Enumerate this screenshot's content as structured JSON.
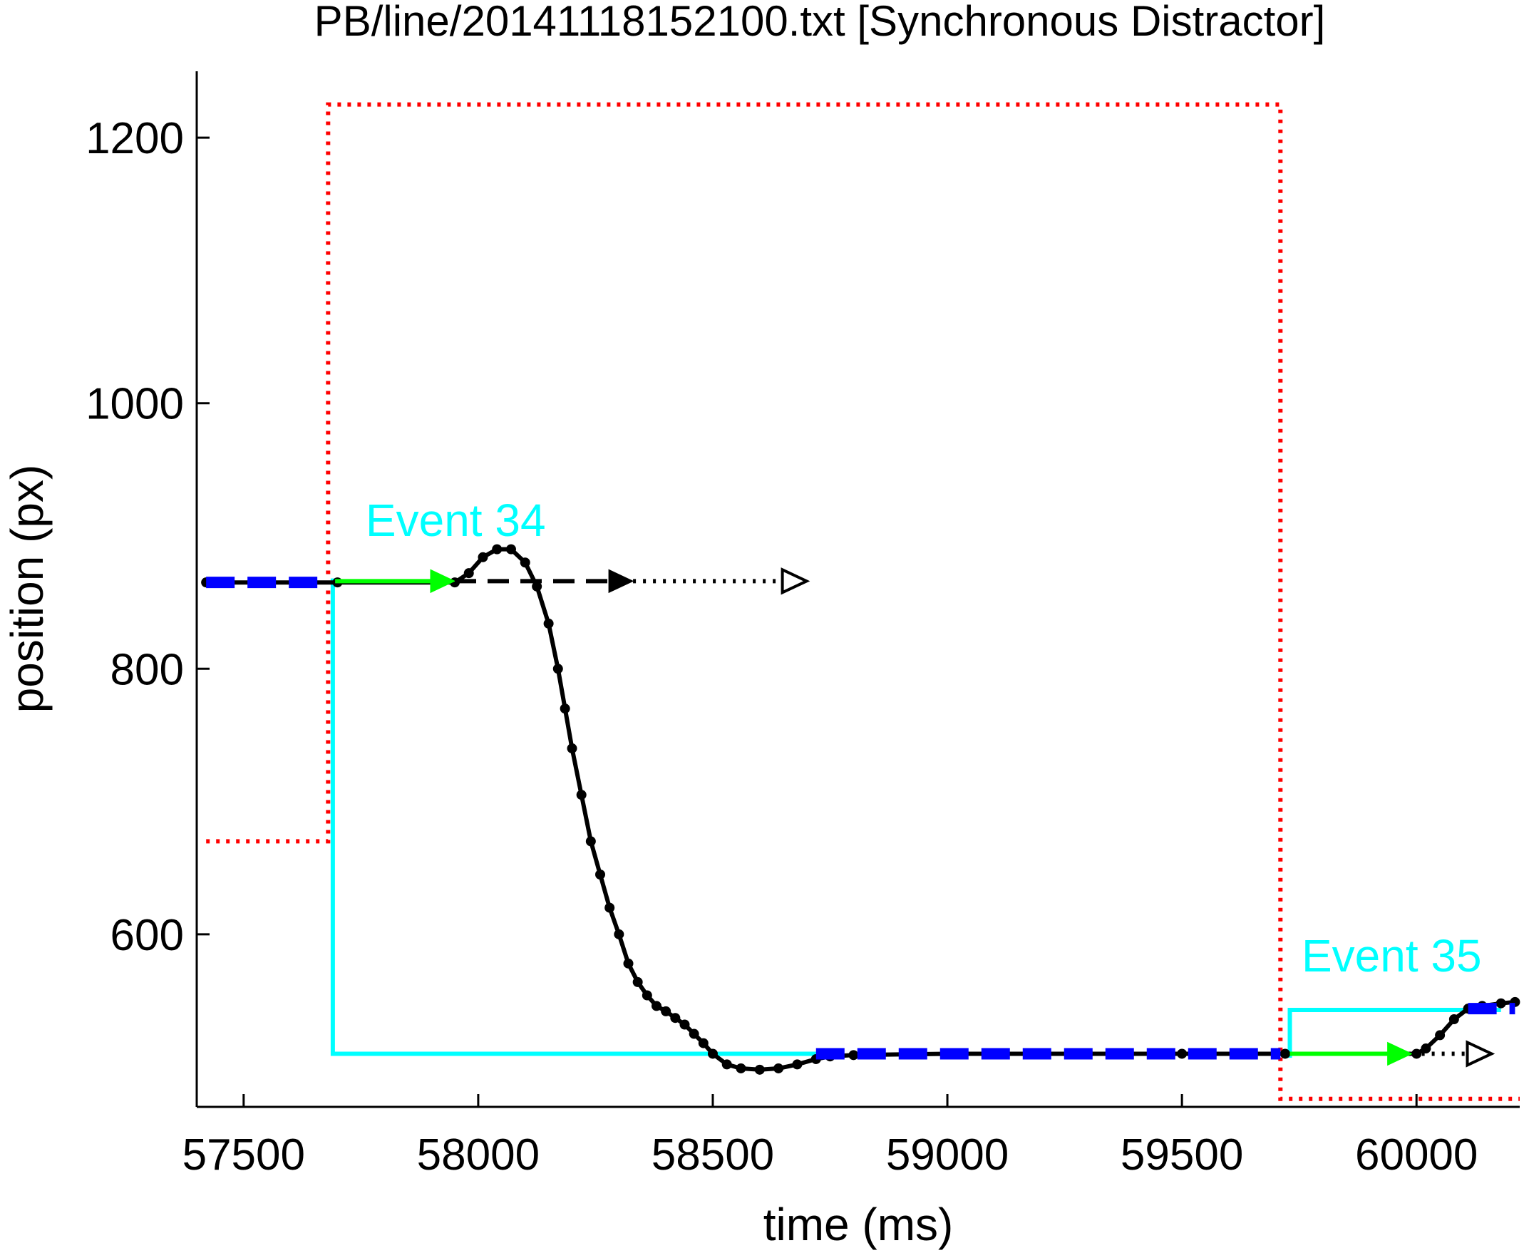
{
  "chart_data": {
    "type": "line",
    "title": "PB/line/20141118152100.txt [Synchronous Distractor]",
    "xlabel": "time (ms)",
    "ylabel": "position (px)",
    "xlim": [
      57400,
      60220
    ],
    "ylim": [
      470,
      1250
    ],
    "xticks": [
      57500,
      58000,
      58500,
      59000,
      59500,
      60000
    ],
    "yticks": [
      600,
      800,
      1000,
      1200
    ],
    "xtick_labels": [
      "57500",
      "58000",
      "58500",
      "59000",
      "59500",
      "60000"
    ],
    "ytick_labels": [
      "600",
      "800",
      "1000",
      "1200"
    ],
    "grid": false,
    "colors": {
      "trajectory": "#000000",
      "target": "#00ffff",
      "fixation": "#0000ff",
      "prediction": "#00ff00",
      "distractor_window": "#ff0000"
    },
    "annotations": [
      {
        "text": "Event 34",
        "x": 57760,
        "y": 900,
        "color": "#00ffff"
      },
      {
        "text": "Event 35",
        "x": 59755,
        "y": 572,
        "color": "#00ffff"
      }
    ],
    "series": [
      {
        "kind": "trajectory",
        "points": [
          [
            57420,
            865
          ],
          [
            57700,
            865
          ],
          [
            57950,
            865
          ],
          [
            57980,
            872
          ],
          [
            58010,
            884
          ],
          [
            58040,
            890
          ],
          [
            58070,
            890
          ],
          [
            58100,
            880
          ],
          [
            58125,
            862
          ],
          [
            58150,
            834
          ],
          [
            58170,
            800
          ],
          [
            58185,
            770
          ],
          [
            58200,
            740
          ],
          [
            58220,
            705
          ],
          [
            58240,
            670
          ],
          [
            58260,
            645
          ],
          [
            58280,
            620
          ],
          [
            58300,
            600
          ],
          [
            58320,
            578
          ],
          [
            58340,
            564
          ],
          [
            58360,
            554
          ],
          [
            58380,
            546
          ],
          [
            58400,
            542
          ],
          [
            58420,
            537
          ],
          [
            58440,
            532
          ],
          [
            58460,
            525
          ],
          [
            58480,
            518
          ],
          [
            58500,
            510
          ],
          [
            58530,
            502
          ],
          [
            58560,
            499
          ],
          [
            58600,
            498
          ],
          [
            58640,
            499
          ],
          [
            58680,
            502
          ],
          [
            58720,
            506
          ],
          [
            58750,
            508
          ],
          [
            58800,
            509
          ],
          [
            59000,
            510
          ],
          [
            59300,
            510
          ],
          [
            59500,
            510
          ],
          [
            59720,
            510
          ],
          [
            60000,
            510
          ],
          [
            60020,
            514
          ],
          [
            60050,
            524
          ],
          [
            60080,
            536
          ],
          [
            60110,
            544
          ],
          [
            60140,
            546
          ],
          [
            60180,
            548
          ],
          [
            60210,
            549
          ]
        ]
      },
      {
        "kind": "target",
        "points": [
          [
            57690,
            868
          ],
          [
            57690,
            510
          ],
          [
            58720,
            510
          ]
        ]
      },
      {
        "kind": "target",
        "points": [
          [
            59730,
            507
          ],
          [
            59730,
            543
          ],
          [
            60180,
            543
          ]
        ]
      },
      {
        "kind": "fixation",
        "segments": [
          {
            "x1": 57420,
            "x2": 57680,
            "y": 865
          },
          {
            "x1": 58720,
            "x2": 59710,
            "y": 510
          },
          {
            "x1": 60110,
            "x2": 60210,
            "y": 544
          }
        ]
      },
      {
        "kind": "prediction",
        "arrows": [
          {
            "x1": 57695,
            "x2": 57950,
            "y": 866
          },
          {
            "x1": 59730,
            "x2": 59990,
            "y": 510
          }
        ]
      },
      {
        "kind": "extrapolation-dashed",
        "arrows": [
          {
            "x1": 57950,
            "x2": 58330,
            "y": 866
          }
        ]
      },
      {
        "kind": "extrapolation-dotted",
        "arrows": [
          {
            "x1": 58330,
            "x2": 58700,
            "y": 866
          },
          {
            "x1": 59990,
            "x2": 60160,
            "y": 510
          }
        ]
      },
      {
        "kind": "distractor-window",
        "points": [
          [
            57420,
            670
          ],
          [
            57680,
            670
          ],
          [
            57680,
            1225
          ],
          [
            59710,
            1225
          ],
          [
            59710,
            476
          ],
          [
            60220,
            476
          ]
        ]
      }
    ]
  }
}
